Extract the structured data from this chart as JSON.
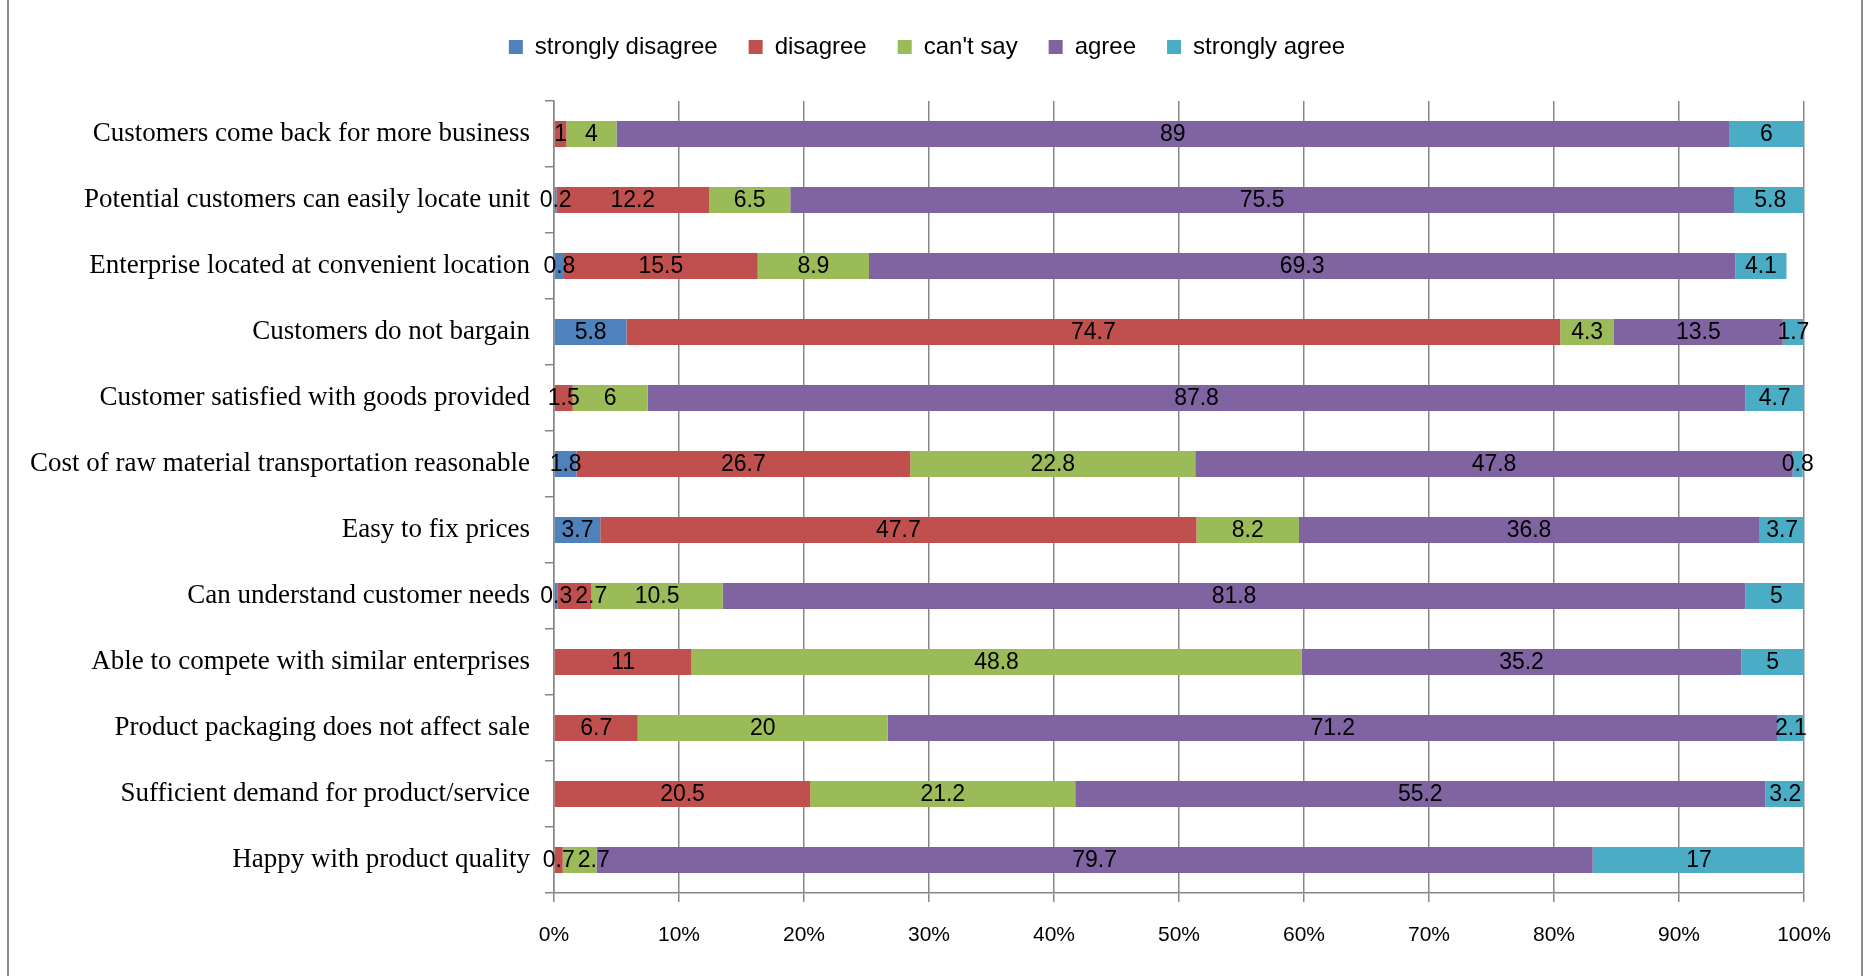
{
  "chart_data": {
    "type": "bar",
    "orientation": "horizontal",
    "stacked": true,
    "categories": [
      "Customers come back for more business",
      "Potential customers can easily locate unit",
      "Enterprise located at convenient location",
      "Customers do not bargain",
      "Customer satisfied with goods provided",
      "Cost of raw material transportation reasonable",
      "Easy to fix prices",
      "Can understand customer needs",
      "Able to compete with similar enterprises",
      "Product packaging does not affect sale",
      "Sufficient demand for product/service",
      "Happy with product quality"
    ],
    "series": [
      {
        "name": "strongly disagree",
        "color": "#4f81bd",
        "values": [
          null,
          0.2,
          0.8,
          5.8,
          null,
          1.8,
          3.7,
          0.3,
          null,
          null,
          null,
          null
        ]
      },
      {
        "name": "disagree",
        "color": "#c0504d",
        "values": [
          1,
          12.2,
          15.5,
          74.7,
          1.5,
          26.7,
          47.7,
          2.7,
          11,
          6.7,
          20.5,
          0.7
        ]
      },
      {
        "name": "can't say",
        "color": "#9bbb59",
        "values": [
          4,
          6.5,
          8.9,
          4.3,
          6,
          22.8,
          8.2,
          10.5,
          48.8,
          20,
          21.2,
          2.7
        ]
      },
      {
        "name": "agree",
        "color": "#8064a2",
        "values": [
          89,
          75.5,
          69.3,
          13.5,
          87.8,
          47.8,
          36.8,
          81.8,
          35.2,
          71.2,
          55.2,
          79.7
        ]
      },
      {
        "name": "strongly agree",
        "color": "#4bacc6",
        "values": [
          6,
          5.8,
          4.1,
          1.7,
          4.7,
          0.8,
          3.7,
          5,
          5,
          2.1,
          3.2,
          17
        ]
      }
    ],
    "xlim": [
      0,
      100
    ],
    "xticks": [
      {
        "value": 0,
        "label": "0%"
      },
      {
        "value": 10,
        "label": "10%"
      },
      {
        "value": 20,
        "label": "20%"
      },
      {
        "value": 30,
        "label": "30%"
      },
      {
        "value": 40,
        "label": "40%"
      },
      {
        "value": 50,
        "label": "50%"
      },
      {
        "value": 60,
        "label": "60%"
      },
      {
        "value": 70,
        "label": "70%"
      },
      {
        "value": 80,
        "label": "80%"
      },
      {
        "value": 90,
        "label": "90%"
      },
      {
        "value": 100,
        "label": "100%"
      }
    ],
    "grid": "x",
    "legend": "top",
    "data_labels": true
  }
}
